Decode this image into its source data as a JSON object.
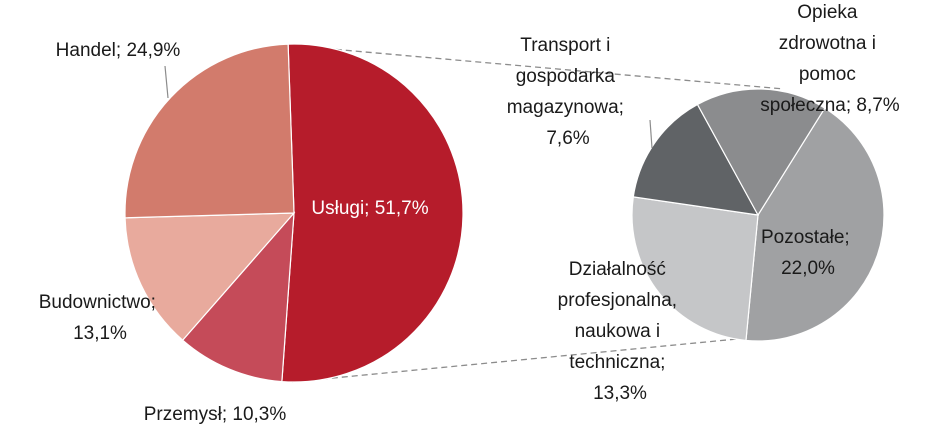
{
  "chart_data": {
    "type": "bar-of-pie",
    "title": "",
    "main_pie": {
      "slices": [
        {
          "label": "Usługi; 51,7%",
          "value": 51.7,
          "color": "#b61c2b"
        },
        {
          "label": "Przemysł; 10,3%",
          "value": 10.3,
          "color": "#c54b59"
        },
        {
          "label": "Budownictwo; 13,1%",
          "value": 13.1,
          "color": "#e8aa9d"
        },
        {
          "label": "Handel; 24,9%",
          "value": 24.9,
          "color": "#d27b6c"
        }
      ]
    },
    "secondary_pie": {
      "slices": [
        {
          "label": "Pozostałe; 22,0%",
          "value": 22.0,
          "color": "#a0a1a3"
        },
        {
          "label": "Działalność profesjonalna, naukowa i techniczna; 13,3%",
          "value": 13.3,
          "color": "#c5c6c8"
        },
        {
          "label": "Transport i gospodarka magazynowa; 7,6%",
          "value": 7.6,
          "color": "#606366"
        },
        {
          "label": "Opieka zdrowotna i pomoc społeczna; 8,7%",
          "value": 8.7,
          "color": "#8b8c8e"
        }
      ]
    },
    "connector_color": "#8c8c8c",
    "text_color": "#1a1a1a"
  }
}
